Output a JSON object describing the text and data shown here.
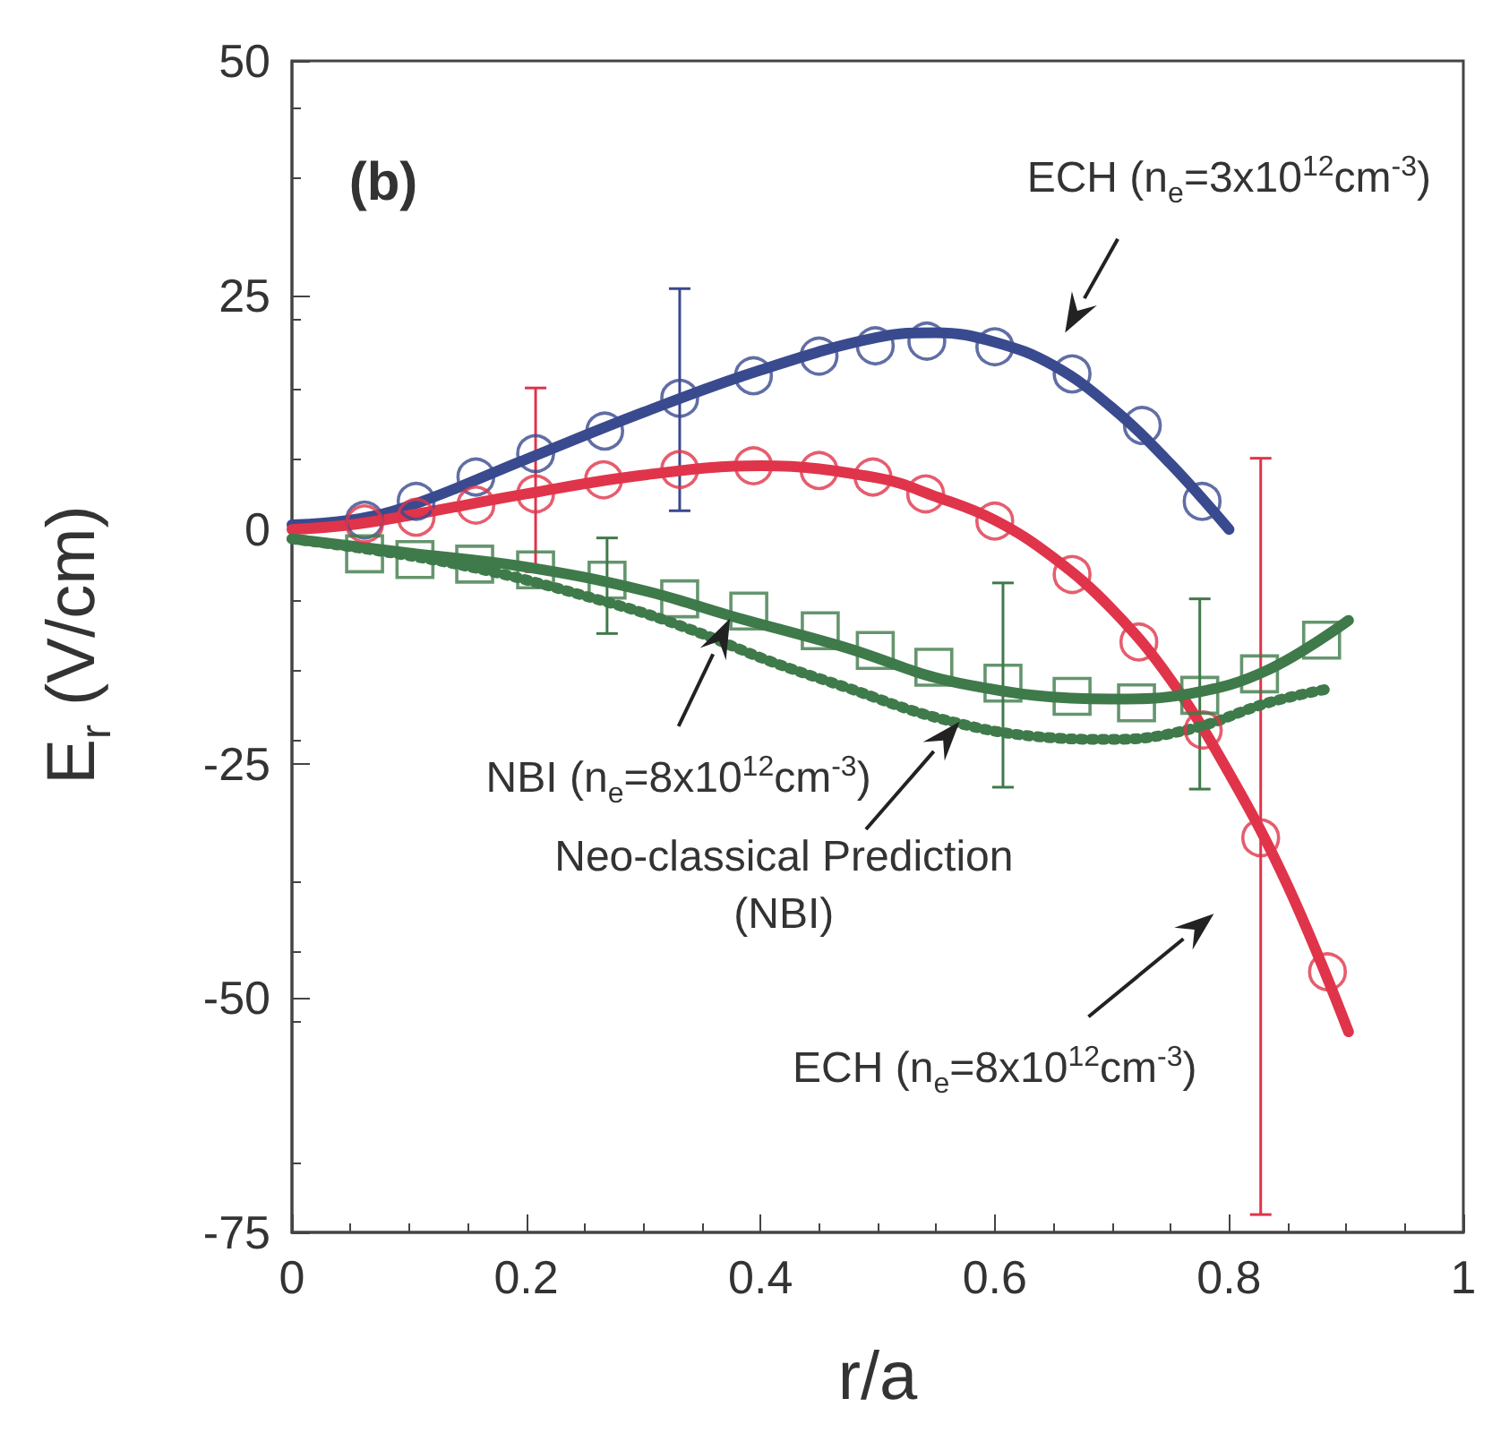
{
  "chart_data": {
    "type": "scatter",
    "xlabel": "r/a",
    "ylabel": "E$_{r}$ (V/cm)",
    "xlim": [
      0,
      1
    ],
    "xticks": [
      0,
      0.2,
      0.4,
      0.6,
      0.8,
      1
    ],
    "ylim": [
      -75,
      50
    ],
    "yticks": [
      -75,
      -50,
      -25,
      0,
      25,
      50
    ],
    "grid": false,
    "series": [
      {
        "marker": "circle",
        "color": "#3a4a8e",
        "x": [
          0.062,
          0.106,
          0.157,
          0.208,
          0.267,
          0.331,
          0.394,
          0.45,
          0.498,
          0.542,
          0.6,
          0.666,
          0.726,
          0.777
        ],
        "values": [
          1.0,
          3.0,
          5.6,
          8.1,
          10.5,
          14.0,
          16.4,
          18.5,
          19.6,
          20.1,
          19.5,
          16.6,
          11.1,
          3.0
        ],
        "errors": [
          null,
          null,
          null,
          null,
          null,
          [
            2.0,
            25.7
          ],
          null,
          null,
          null,
          null,
          null,
          null,
          null,
          null
        ]
      },
      {
        "type": "line",
        "color": "#3a4a8e",
        "line_style": "solid",
        "x": [
          0,
          0.05,
          0.1,
          0.2,
          0.3,
          0.4,
          0.5,
          0.55,
          0.6,
          0.65,
          0.7,
          0.75,
          0.8
        ],
        "values": [
          0.5,
          1,
          2.5,
          7.5,
          12.5,
          17,
          20.5,
          21,
          20,
          17.5,
          13,
          7,
          0
        ]
      },
      {
        "marker": "circle",
        "color": "#e0344a",
        "x": [
          0.062,
          0.106,
          0.157,
          0.208,
          0.266,
          0.331,
          0.394,
          0.45,
          0.496,
          0.541,
          0.6,
          0.666,
          0.723,
          0.778,
          0.827,
          0.884
        ],
        "values": [
          0.6,
          1.3,
          2.6,
          3.8,
          5.3,
          6.4,
          6.8,
          6.3,
          5.6,
          3.8,
          0.9,
          -4.8,
          -12.0,
          -21.4,
          -32.9,
          -47.2
        ],
        "errors": [
          null,
          null,
          null,
          [
            -4.5,
            15.1
          ],
          null,
          null,
          null,
          null,
          null,
          null,
          null,
          null,
          null,
          null,
          [
            -73.1,
            7.6
          ],
          null
        ]
      },
      {
        "type": "line",
        "color": "#e0344a",
        "line_style": "solid",
        "x": [
          0,
          0.05,
          0.1,
          0.2,
          0.3,
          0.4,
          0.5,
          0.55,
          0.6,
          0.65,
          0.7,
          0.75,
          0.8,
          0.85,
          0.902
        ],
        "values": [
          0,
          0.5,
          1.5,
          3.8,
          5.8,
          6.8,
          5.5,
          3.5,
          1,
          -3,
          -8.5,
          -16,
          -26,
          -38,
          -53.6
        ]
      },
      {
        "marker": "square",
        "color": "#3f7a4a",
        "x": [
          0.062,
          0.105,
          0.156,
          0.208,
          0.269,
          0.331,
          0.39,
          0.451,
          0.498,
          0.548,
          0.607,
          0.666,
          0.721,
          0.775,
          0.826,
          0.879
        ],
        "values": [
          -2.6,
          -3.2,
          -3.7,
          -4.3,
          -5.4,
          -7.4,
          -8.7,
          -10.8,
          -12.9,
          -14.7,
          -16.4,
          -17.8,
          -18.5,
          -17.7,
          -15.4,
          -11.8
        ],
        "errors": [
          null,
          null,
          null,
          null,
          [
            -11.1,
            -0.9
          ],
          null,
          null,
          null,
          null,
          null,
          [
            -27.5,
            -5.7
          ],
          null,
          null,
          [
            -27.7,
            -7.4
          ],
          null,
          null
        ]
      },
      {
        "type": "line",
        "color": "#3f7a4a",
        "line_style": "solid",
        "x": [
          0,
          0.1,
          0.2,
          0.3,
          0.374,
          0.47,
          0.57,
          0.7,
          0.767,
          0.833,
          0.902
        ],
        "values": [
          -1,
          -2.5,
          -4,
          -6.5,
          -9.2,
          -12.5,
          -16.4,
          -18.1,
          -17.5,
          -15,
          -9.7
        ]
      },
      {
        "type": "line",
        "color": "#3f7a4a",
        "line_style": "dotted",
        "x": [
          0,
          0.144,
          0.276,
          0.341,
          0.407,
          0.472,
          0.554,
          0.636,
          0.702,
          0.767,
          0.833,
          0.885
        ],
        "values": [
          -1,
          -3.8,
          -8.0,
          -10.7,
          -14.0,
          -16.8,
          -20.2,
          -22.1,
          -22.4,
          -21.3,
          -18.5,
          -17.0
        ]
      }
    ],
    "annotations": [
      "(b)",
      "ECH (n$_{e}$=3x10$^{12}$cm$^{-3}$)",
      "NBI (n$_{e}$=8x10$^{12}$cm$^{-3}$)",
      "Neo-classical Prediction\n(NBI)",
      "ECH (n$_{e}$=8x10$^{12}$cm$^{-3}$)"
    ]
  }
}
